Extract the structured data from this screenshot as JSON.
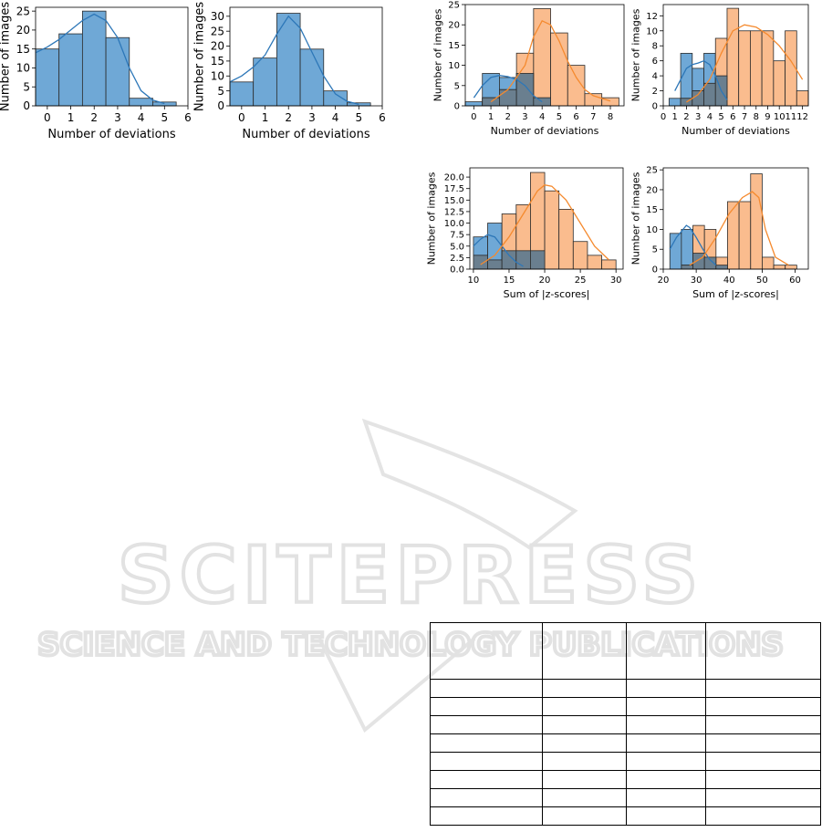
{
  "chart_data": [
    {
      "type": "bar",
      "xlabel": "Number of deviations",
      "ylabel": "Number of images",
      "xlim": [
        -0.5,
        6
      ],
      "ylim": [
        0,
        26
      ],
      "xticks": [
        "0",
        "1",
        "2",
        "3",
        "4",
        "5",
        "6"
      ],
      "yticks": [
        "0",
        "5",
        "10",
        "15",
        "20",
        "25"
      ],
      "series": [
        {
          "color": "#6fa8d6",
          "bins": [
            [
              -0.5,
              0.5,
              15
            ],
            [
              0.5,
              1.5,
              19
            ],
            [
              1.5,
              2.5,
              25
            ],
            [
              2.5,
              3.5,
              18
            ],
            [
              3.5,
              4.5,
              2
            ],
            [
              4.5,
              5.5,
              1
            ]
          ],
          "kde": [
            [
              -0.5,
              14
            ],
            [
              0,
              15.5
            ],
            [
              0.5,
              17.5
            ],
            [
              1,
              20
            ],
            [
              1.5,
              22.5
            ],
            [
              2,
              24.2
            ],
            [
              2.5,
              22.5
            ],
            [
              3,
              18
            ],
            [
              3.5,
              10
            ],
            [
              4,
              4
            ],
            [
              4.5,
              1.5
            ],
            [
              5,
              0.6
            ]
          ]
        }
      ]
    },
    {
      "type": "bar",
      "xlabel": "Number of deviations",
      "ylabel": "Number of images",
      "xlim": [
        -0.5,
        6
      ],
      "ylim": [
        0,
        33
      ],
      "xticks": [
        "0",
        "1",
        "2",
        "3",
        "4",
        "5",
        "6"
      ],
      "yticks": [
        "0",
        "5",
        "10",
        "15",
        "20",
        "25",
        "30"
      ],
      "series": [
        {
          "color": "#6fa8d6",
          "bins": [
            [
              -0.5,
              0.5,
              8
            ],
            [
              0.5,
              1.5,
              16
            ],
            [
              1.5,
              2.5,
              31
            ],
            [
              2.5,
              3.5,
              19
            ],
            [
              3.5,
              4.5,
              5
            ],
            [
              4.5,
              5.5,
              1
            ]
          ],
          "kde": [
            [
              -0.5,
              8
            ],
            [
              0,
              10
            ],
            [
              0.5,
              13
            ],
            [
              1,
              17
            ],
            [
              1.5,
              24
            ],
            [
              2,
              30
            ],
            [
              2.5,
              26
            ],
            [
              3,
              18
            ],
            [
              3.5,
              10
            ],
            [
              4,
              4
            ],
            [
              4.5,
              1.5
            ],
            [
              5,
              0.5
            ]
          ]
        }
      ]
    },
    {
      "type": "bar",
      "xlabel": "Number of deviations",
      "ylabel": "Number of images",
      "xlim": [
        -0.5,
        8.8
      ],
      "ylim": [
        0,
        25
      ],
      "xticks": [
        "0",
        "1",
        "2",
        "3",
        "4",
        "5",
        "6",
        "7",
        "8"
      ],
      "yticks": [
        "0",
        "5",
        "10",
        "15",
        "20",
        "25"
      ],
      "series": [
        {
          "color": "#6fa8d6",
          "bins": [
            [
              -0.5,
              0.5,
              1
            ],
            [
              0.5,
              1.5,
              8
            ],
            [
              1.5,
              2.5,
              7
            ],
            [
              2.5,
              3.5,
              8
            ],
            [
              3.5,
              4.5,
              2
            ]
          ],
          "kde": [
            [
              0,
              2
            ],
            [
              0.5,
              5
            ],
            [
              1,
              7
            ],
            [
              1.5,
              7.5
            ],
            [
              2,
              7.2
            ],
            [
              2.5,
              6.5
            ],
            [
              3,
              5
            ],
            [
              3.5,
              2.5
            ],
            [
              4,
              1
            ]
          ]
        },
        {
          "color": "#f9b07a",
          "bins": [
            [
              0.5,
              1.5,
              2
            ],
            [
              1.5,
              2.5,
              4
            ],
            [
              2.5,
              3.5,
              13
            ],
            [
              3.5,
              4.5,
              24
            ],
            [
              4.5,
              5.5,
              18
            ],
            [
              5.5,
              6.5,
              10
            ],
            [
              6.5,
              7.5,
              3
            ],
            [
              7.5,
              8.5,
              2
            ]
          ],
          "kde": [
            [
              1,
              1
            ],
            [
              2,
              4
            ],
            [
              3,
              10
            ],
            [
              3.5,
              17
            ],
            [
              4,
              21
            ],
            [
              4.5,
              20
            ],
            [
              5,
              16
            ],
            [
              5.5,
              11
            ],
            [
              6,
              7
            ],
            [
              6.5,
              4
            ],
            [
              7,
              2.5
            ],
            [
              8,
              1.2
            ]
          ]
        }
      ]
    },
    {
      "type": "bar",
      "xlabel": "Number of deviations",
      "ylabel": "Number of images",
      "xlim": [
        0,
        12.5
      ],
      "ylim": [
        0,
        13.5
      ],
      "xticks": [
        "0",
        "1",
        "2",
        "3",
        "4",
        "5",
        "6",
        "7",
        "8",
        "9",
        "10",
        "11",
        "12"
      ],
      "yticks": [
        "0",
        "2",
        "4",
        "6",
        "8",
        "10",
        "12"
      ],
      "series": [
        {
          "color": "#6fa8d6",
          "bins": [
            [
              0.5,
              1.5,
              1
            ],
            [
              1.5,
              2.5,
              7
            ],
            [
              2.5,
              3.5,
              5
            ],
            [
              3.5,
              4.5,
              7
            ],
            [
              4.5,
              5.5,
              4
            ]
          ],
          "kde": [
            [
              1,
              2
            ],
            [
              1.5,
              3.5
            ],
            [
              2,
              5
            ],
            [
              2.5,
              5.5
            ],
            [
              3,
              5.7
            ],
            [
              3.5,
              6
            ],
            [
              4,
              5.5
            ],
            [
              4.5,
              4
            ],
            [
              5,
              2
            ],
            [
              5.5,
              0.8
            ]
          ]
        },
        {
          "color": "#f9b07a",
          "bins": [
            [
              1.5,
              2.5,
              1
            ],
            [
              2.5,
              3.5,
              2
            ],
            [
              3.5,
              4.5,
              3
            ],
            [
              4.5,
              5.5,
              9
            ],
            [
              5.5,
              6.5,
              13
            ],
            [
              6.5,
              7.5,
              10
            ],
            [
              7.5,
              8.5,
              10
            ],
            [
              8.5,
              9.5,
              10
            ],
            [
              9.5,
              10.5,
              6
            ],
            [
              10.5,
              11.5,
              10
            ],
            [
              11.5,
              12.5,
              2
            ]
          ],
          "kde": [
            [
              2,
              0.5
            ],
            [
              3,
              1.5
            ],
            [
              4,
              3.5
            ],
            [
              5,
              7
            ],
            [
              6,
              10
            ],
            [
              7,
              10.8
            ],
            [
              8,
              10.5
            ],
            [
              9,
              9.5
            ],
            [
              10,
              8
            ],
            [
              11,
              6
            ],
            [
              12,
              3.5
            ]
          ]
        }
      ]
    },
    {
      "type": "bar",
      "xlabel": "Sum of |z-scores|",
      "ylabel": "Number of images",
      "xlim": [
        9.5,
        31
      ],
      "ylim": [
        0,
        22
      ],
      "xticks": [
        "10",
        "15",
        "20",
        "25",
        "30"
      ],
      "yticks": [
        "0.0",
        "2.5",
        "5.0",
        "7.5",
        "10.0",
        "12.5",
        "15.0",
        "17.5",
        "20.0"
      ],
      "series": [
        {
          "color": "#6fa8d6",
          "bins": [
            [
              10,
              12,
              7
            ],
            [
              12,
              14,
              10
            ],
            [
              14,
              16,
              4
            ],
            [
              16,
              18,
              4
            ],
            [
              18,
              20,
              4
            ]
          ],
          "kde": [
            [
              10,
              5
            ],
            [
              11,
              6.5
            ],
            [
              12,
              7.5
            ],
            [
              13,
              7
            ],
            [
              14,
              5
            ],
            [
              15,
              3
            ],
            [
              16,
              1.5
            ],
            [
              17,
              0.6
            ]
          ]
        },
        {
          "color": "#f9b07a",
          "bins": [
            [
              10,
              12,
              3
            ],
            [
              12,
              14,
              2
            ],
            [
              14,
              16,
              12
            ],
            [
              16,
              18,
              14
            ],
            [
              18,
              20,
              21
            ],
            [
              20,
              22,
              17
            ],
            [
              22,
              24,
              13
            ],
            [
              24,
              26,
              6
            ],
            [
              26,
              28,
              3
            ],
            [
              28,
              30,
              2
            ]
          ],
          "kde": [
            [
              11,
              1
            ],
            [
              13,
              3
            ],
            [
              15,
              7
            ],
            [
              17,
              12
            ],
            [
              19,
              17
            ],
            [
              20,
              18.3
            ],
            [
              21,
              18
            ],
            [
              23,
              15
            ],
            [
              25,
              10
            ],
            [
              27,
              5
            ],
            [
              29,
              2
            ]
          ]
        }
      ]
    },
    {
      "type": "bar",
      "xlabel": "Sum of |z-scores|",
      "ylabel": "Number of images",
      "xlim": [
        20,
        64
      ],
      "ylim": [
        0,
        25.5
      ],
      "xticks": [
        "20",
        "30",
        "40",
        "50",
        "60"
      ],
      "yticks": [
        "0",
        "5",
        "10",
        "15",
        "20",
        "25"
      ],
      "series": [
        {
          "color": "#6fa8d6",
          "bins": [
            [
              22,
              25.5,
              9
            ],
            [
              25.5,
              29,
              10
            ],
            [
              29,
              32.5,
              4
            ],
            [
              32.5,
              36,
              3
            ],
            [
              36,
              39.5,
              1
            ]
          ],
          "kde": [
            [
              22,
              5
            ],
            [
              24,
              8
            ],
            [
              26,
              10
            ],
            [
              27,
              11
            ],
            [
              28,
              10.5
            ],
            [
              30,
              8
            ],
            [
              32,
              5
            ],
            [
              34,
              2.5
            ],
            [
              36,
              1
            ]
          ]
        },
        {
          "color": "#f9b07a",
          "bins": [
            [
              25.5,
              29,
              1
            ],
            [
              29,
              32.5,
              11
            ],
            [
              32.5,
              36,
              10
            ],
            [
              36,
              39.5,
              3
            ],
            [
              39.5,
              43,
              17
            ],
            [
              43,
              46.5,
              17
            ],
            [
              46.5,
              50,
              24
            ],
            [
              50,
              53.5,
              3
            ],
            [
              53.5,
              57,
              1
            ],
            [
              57,
              60.5,
              1
            ]
          ],
          "kde": [
            [
              28,
              1
            ],
            [
              32,
              3
            ],
            [
              36,
              8
            ],
            [
              40,
              14
            ],
            [
              44,
              18
            ],
            [
              47,
              19.5
            ],
            [
              49,
              18
            ],
            [
              51,
              10
            ],
            [
              54,
              3
            ],
            [
              58,
              1
            ]
          ]
        }
      ]
    }
  ],
  "watermark": {
    "line1": "SCITEPRESS",
    "line2": "SCIENCE AND TECHNOLOGY PUBLICATIONS"
  }
}
